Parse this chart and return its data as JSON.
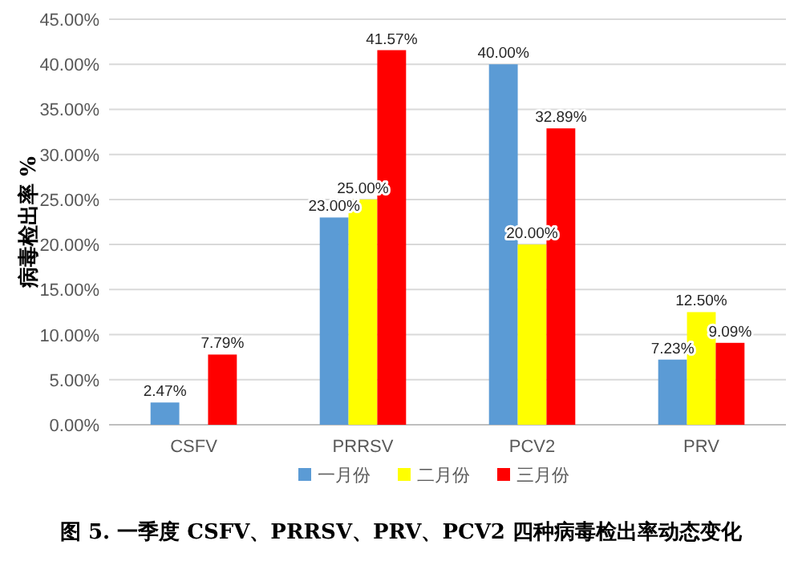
{
  "chart_data": {
    "type": "bar",
    "title": "图 5. 一季度 CSFV、PRRSV、PRV、PCV2 四种病毒检出率动态变化",
    "ylabel": "病毒检出率 %",
    "categories": [
      "CSFV",
      "PRRSV",
      "PCV2",
      "PRV"
    ],
    "series": [
      {
        "name": "一月份",
        "color": "#5b9bd5",
        "values": [
          2.47,
          23.0,
          40.0,
          7.23
        ],
        "value_labels": [
          "2.47%",
          "23.00%",
          "40.00%",
          "7.23%"
        ]
      },
      {
        "name": "二月份",
        "color": "#ffff00",
        "values": [
          null,
          25.0,
          20.0,
          12.5
        ],
        "value_labels": [
          null,
          "25.00%",
          "20.00%",
          "12.50%"
        ]
      },
      {
        "name": "三月份",
        "color": "#ff0000",
        "values": [
          7.79,
          41.57,
          32.89,
          9.09
        ],
        "value_labels": [
          "7.79%",
          "41.57%",
          "32.89%",
          "9.09%"
        ]
      }
    ],
    "ylim": [
      0,
      45
    ],
    "yticks": [
      {
        "value": 0,
        "label": "0.00%"
      },
      {
        "value": 5,
        "label": "5.00%"
      },
      {
        "value": 10,
        "label": "10.00%"
      },
      {
        "value": 15,
        "label": "15.00%"
      },
      {
        "value": 20,
        "label": "20.00%"
      },
      {
        "value": 25,
        "label": "25.00%"
      },
      {
        "value": 30,
        "label": "30.00%"
      },
      {
        "value": 35,
        "label": "35.00%"
      },
      {
        "value": 40,
        "label": "40.00%"
      },
      {
        "value": 45,
        "label": "45.00%"
      }
    ],
    "grid": "y",
    "legend": "bottom"
  }
}
